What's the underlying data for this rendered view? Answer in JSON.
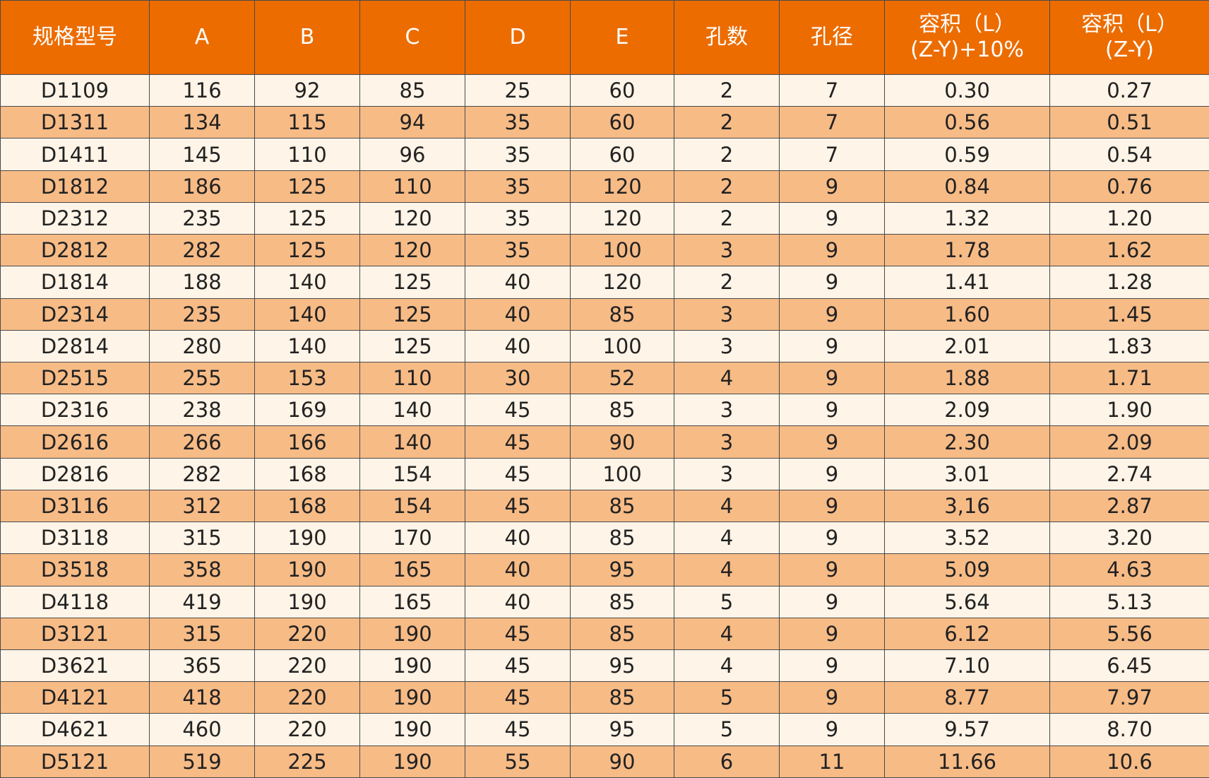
{
  "table": {
    "header": [
      "规格型号",
      "A",
      "B",
      "C",
      "D",
      "E",
      "孔数",
      "孔径",
      "容积（L）\n(Z-Y)+10%",
      "容积（L）\n(Z-Y)"
    ],
    "rows": [
      [
        "D1109",
        "116",
        "92",
        "85",
        "25",
        "60",
        "2",
        "7",
        "0.30",
        "0.27"
      ],
      [
        "D1311",
        "134",
        "115",
        "94",
        "35",
        "60",
        "2",
        "7",
        "0.56",
        "0.51"
      ],
      [
        "D1411",
        "145",
        "110",
        "96",
        "35",
        "60",
        "2",
        "7",
        "0.59",
        "0.54"
      ],
      [
        "D1812",
        "186",
        "125",
        "110",
        "35",
        "120",
        "2",
        "9",
        "0.84",
        "0.76"
      ],
      [
        "D2312",
        "235",
        "125",
        "120",
        "35",
        "120",
        "2",
        "9",
        "1.32",
        "1.20"
      ],
      [
        "D2812",
        "282",
        "125",
        "120",
        "35",
        "100",
        "3",
        "9",
        "1.78",
        "1.62"
      ],
      [
        "D1814",
        "188",
        "140",
        "125",
        "40",
        "120",
        "2",
        "9",
        "1.41",
        "1.28"
      ],
      [
        "D2314",
        "235",
        "140",
        "125",
        "40",
        "85",
        "3",
        "9",
        "1.60",
        "1.45"
      ],
      [
        "D2814",
        "280",
        "140",
        "125",
        "40",
        "100",
        "3",
        "9",
        "2.01",
        "1.83"
      ],
      [
        "D2515",
        "255",
        "153",
        "110",
        "30",
        "52",
        "4",
        "9",
        "1.88",
        "1.71"
      ],
      [
        "D2316",
        "238",
        "169",
        "140",
        "45",
        "85",
        "3",
        "9",
        "2.09",
        "1.90"
      ],
      [
        "D2616",
        "266",
        "166",
        "140",
        "45",
        "90",
        "3",
        "9",
        "2.30",
        "2.09"
      ],
      [
        "D2816",
        "282",
        "168",
        "154",
        "45",
        "100",
        "3",
        "9",
        "3.01",
        "2.74"
      ],
      [
        "D3116",
        "312",
        "168",
        "154",
        "45",
        "85",
        "4",
        "9",
        "3,16",
        "2.87"
      ],
      [
        "D3118",
        "315",
        "190",
        "170",
        "40",
        "85",
        "4",
        "9",
        "3.52",
        "3.20"
      ],
      [
        "D3518",
        "358",
        "190",
        "165",
        "40",
        "95",
        "4",
        "9",
        "5.09",
        "4.63"
      ],
      [
        "D4118",
        "419",
        "190",
        "165",
        "40",
        "85",
        "5",
        "9",
        "5.64",
        "5.13"
      ],
      [
        "D3121",
        "315",
        "220",
        "190",
        "45",
        "85",
        "4",
        "9",
        "6.12",
        "5.56"
      ],
      [
        "D3621",
        "365",
        "220",
        "190",
        "45",
        "95",
        "4",
        "9",
        "7.10",
        "6.45"
      ],
      [
        "D4121",
        "418",
        "220",
        "190",
        "45",
        "85",
        "5",
        "9",
        "8.77",
        "7.97"
      ],
      [
        "D4621",
        "460",
        "220",
        "190",
        "45",
        "95",
        "5",
        "9",
        "9.57",
        "8.70"
      ],
      [
        "D5121",
        "519",
        "225",
        "190",
        "55",
        "90",
        "6",
        "11",
        "11.66",
        "10.6"
      ]
    ]
  }
}
